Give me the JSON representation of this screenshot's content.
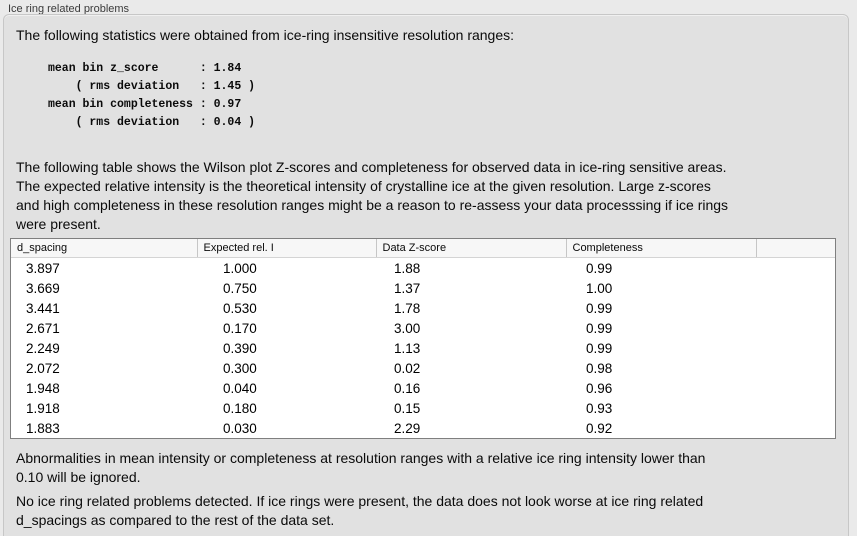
{
  "panel": {
    "title": "Ice ring related problems"
  },
  "stats": {
    "intro": "The following statistics were obtained from ice-ring insensitive resolution ranges:",
    "mean_bin_z_score": "1.84",
    "z_score_rms_deviation": "1.45",
    "mean_bin_completeness": "0.97",
    "completeness_rms_deviation": "0.04",
    "block": "mean bin z_score      : 1.84\n    ( rms deviation   : 1.45 )\nmean bin completeness : 0.97\n    ( rms deviation   : 0.04 )"
  },
  "table_section": {
    "description": "The following table shows the Wilson plot Z-scores and completeness for observed data in ice-ring sensitive areas.\nThe expected relative intensity is the theoretical intensity of crystalline ice at the given resolution. Large z-scores\nand high completeness in these resolution ranges might be a reason to re-assess your data processsing if ice rings\nwere present."
  },
  "table": {
    "headers": [
      "d_spacing",
      "Expected rel. I",
      "Data Z-score",
      "Completeness",
      ""
    ],
    "rows": [
      [
        "3.897",
        "1.000",
        "1.88",
        "0.99"
      ],
      [
        "3.669",
        "0.750",
        "1.37",
        "1.00"
      ],
      [
        "3.441",
        "0.530",
        "1.78",
        "0.99"
      ],
      [
        "2.671",
        "0.170",
        "3.00",
        "0.99"
      ],
      [
        "2.249",
        "0.390",
        "1.13",
        "0.99"
      ],
      [
        "2.072",
        "0.300",
        "0.02",
        "0.98"
      ],
      [
        "1.948",
        "0.040",
        "0.16",
        "0.96"
      ],
      [
        "1.918",
        "0.180",
        "0.15",
        "0.93"
      ],
      [
        "1.883",
        "0.030",
        "2.29",
        "0.92"
      ]
    ]
  },
  "notes": {
    "ignored": "Abnormalities in mean intensity or completeness at resolution ranges with a relative ice ring intensity lower than\n0.10 will be ignored.",
    "conclusion": "No ice ring related problems detected. If ice rings were present, the data does not look worse at ice ring related\nd_spacings as compared to the rest of the data set."
  },
  "colors": {
    "outer_bg": "#eaeaea",
    "panel_bg": "#e1e1e1",
    "panel_border": "#c7c7c7",
    "table_border": "#7f7f7f",
    "table_header_bg": "#f7f7f7",
    "table_body_bg": "#ffffff",
    "text": "#0a0a0a"
  }
}
